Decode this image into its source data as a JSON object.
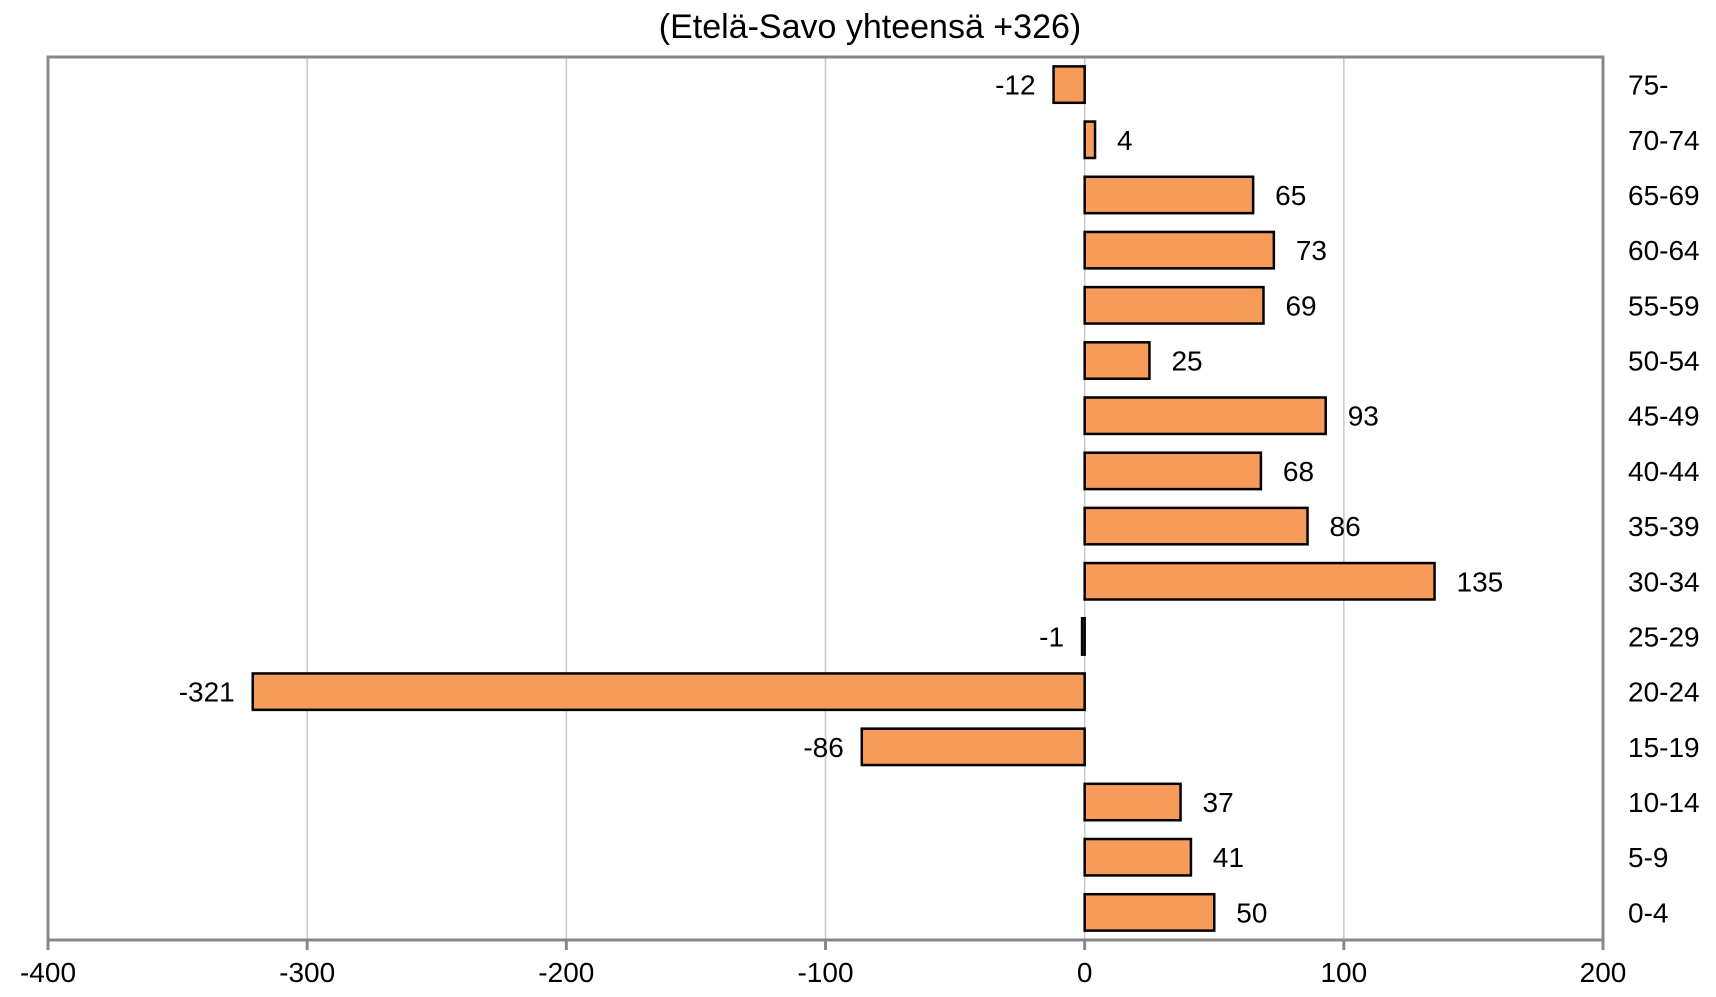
{
  "chart_data": {
    "type": "bar",
    "orientation": "horizontal",
    "title": "(Etelä-Savo yhteensä  +326)",
    "xlabel": "",
    "ylabel": "",
    "xlim": [
      -400,
      200
    ],
    "x_ticks": [
      -400,
      -300,
      -200,
      -100,
      0,
      100,
      200
    ],
    "x_tick_labels": [
      "-400",
      "-300",
      "-200",
      "-100",
      "0",
      "100",
      "200"
    ],
    "grid": "vertical",
    "legend": "none",
    "bar_color": "#F79B5A",
    "categories": [
      "75-",
      "70-74",
      "65-69",
      "60-64",
      "55-59",
      "50-54",
      "45-49",
      "40-44",
      "35-39",
      "30-34",
      "25-29",
      "20-24",
      "15-19",
      "10-14",
      "5-9",
      "0-4"
    ],
    "values": [
      -12,
      4,
      65,
      73,
      69,
      25,
      93,
      68,
      86,
      135,
      -1,
      -321,
      -86,
      37,
      41,
      50
    ],
    "value_labels": [
      "-12",
      "4",
      "65",
      "73",
      "69",
      "25",
      "93",
      "68",
      "86",
      "135",
      "-1",
      "-321",
      "-86",
      "37",
      "41",
      "50"
    ]
  }
}
